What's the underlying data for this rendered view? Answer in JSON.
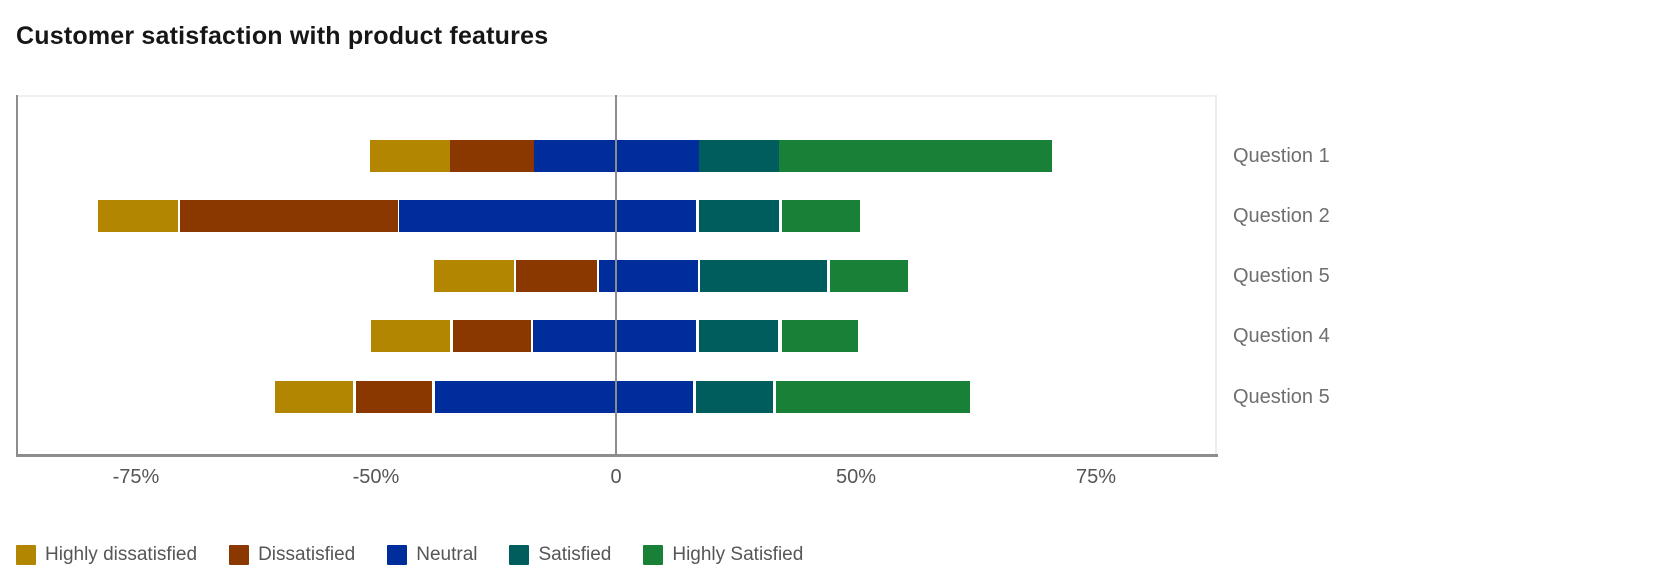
{
  "chart_data": {
    "type": "bar",
    "variant": "horizontal-stacked-diverging",
    "title": "Customer satisfaction with product features",
    "categories": [
      "Question 1",
      "Question 2",
      "Question 5",
      "Question 4",
      "Question 5"
    ],
    "series": [
      {
        "name": "Highly dissatisfied",
        "color": "#b28600",
        "approx_values": [
          16,
          8,
          17,
          16,
          8
        ]
      },
      {
        "name": "Dissatisfied",
        "color": "#8a3800",
        "approx_values": [
          18,
          25,
          17,
          16,
          14
        ]
      },
      {
        "name": "Neutral",
        "color": "#002d9c",
        "approx_values": [
          34,
          62,
          20,
          34,
          54
        ]
      },
      {
        "name": "Satisfied",
        "color": "#005d5d",
        "approx_values": [
          17,
          17,
          26,
          16,
          16
        ]
      },
      {
        "name": "Highly Satisfied",
        "color": "#198038",
        "approx_values": [
          36,
          16,
          16,
          16,
          29
        ]
      }
    ],
    "rows": [
      {
        "label": "Question 1",
        "segments_pct": [
          [
            29.5,
            36.2
          ],
          [
            36.2,
            43.2
          ],
          [
            43.2,
            56.9
          ],
          [
            56.9,
            63.6
          ],
          [
            63.6,
            86.3
          ]
        ]
      },
      {
        "label": "Question 2",
        "segments_pct": [
          [
            6.8,
            13.5
          ],
          [
            13.7,
            31.8
          ],
          [
            31.9,
            56.7
          ],
          [
            56.9,
            63.6
          ],
          [
            63.8,
            70.3
          ]
        ]
      },
      {
        "label": "Question 5",
        "segments_pct": [
          [
            34.8,
            41.5
          ],
          [
            41.7,
            48.4
          ],
          [
            48.6,
            56.8
          ],
          [
            57.0,
            67.6
          ],
          [
            67.8,
            74.3
          ]
        ]
      },
      {
        "label": "Question 4",
        "segments_pct": [
          [
            29.6,
            36.2
          ],
          [
            36.4,
            42.9
          ],
          [
            43.1,
            56.7
          ],
          [
            56.9,
            63.5
          ],
          [
            63.8,
            70.2
          ]
        ]
      },
      {
        "label": "Question 5",
        "segments_pct": [
          [
            21.6,
            28.1
          ],
          [
            28.3,
            34.7
          ],
          [
            34.9,
            56.4
          ],
          [
            56.7,
            63.1
          ],
          [
            63.3,
            79.5
          ]
        ]
      }
    ],
    "x_axis": {
      "tick_labels": [
        "-75%",
        "-50%",
        "0",
        "50%",
        "75%"
      ],
      "tick_positions_pct": [
        10,
        30,
        50,
        70,
        90
      ],
      "zero_line_pct": 50,
      "axis_line_color": "#8d8d8d"
    },
    "legend": {
      "position": "bottom",
      "labels": [
        "Highly dissatisfied",
        "Dissatisfied",
        "Neutral",
        "Satisfied",
        "Highly Satisfied"
      ]
    },
    "grid": false
  },
  "text_colors": {
    "title": "#161616",
    "tick_label": "#565656",
    "category_label": "#6f6f6f",
    "legend_label": "#565656"
  }
}
